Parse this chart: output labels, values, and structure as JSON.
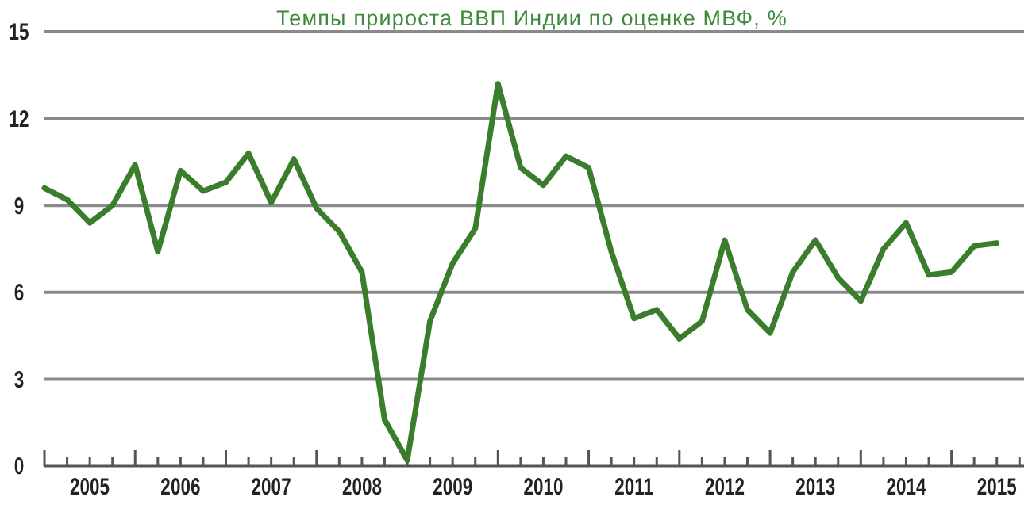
{
  "chart_data": {
    "type": "line",
    "title": "Темпы прироста ВВП Индии по оценке МВФ, %",
    "x": [
      2005,
      2005.25,
      2005.5,
      2005.75,
      2006,
      2006.25,
      2006.5,
      2006.75,
      2007,
      2007.25,
      2007.5,
      2007.75,
      2008,
      2008.25,
      2008.5,
      2008.75,
      2009,
      2009.25,
      2009.5,
      2009.75,
      2010,
      2010.25,
      2010.5,
      2010.75,
      2011,
      2011.25,
      2011.5,
      2011.75,
      2012,
      2012.25,
      2012.5,
      2012.75,
      2013,
      2013.25,
      2013.5,
      2013.75,
      2014,
      2014.25,
      2014.5,
      2014.75,
      2015,
      2015.25,
      2015.5
    ],
    "series": [
      {
        "color": "#3a7d2c",
        "values": [
          9.6,
          9.2,
          8.4,
          9.0,
          10.4,
          7.4,
          10.2,
          9.5,
          9.8,
          10.8,
          9.1,
          10.6,
          8.9,
          8.1,
          6.7,
          1.6,
          0.2,
          5.0,
          7.0,
          8.2,
          13.2,
          10.3,
          9.7,
          10.7,
          10.3,
          7.4,
          5.1,
          5.4,
          4.4,
          5.0,
          7.8,
          5.4,
          4.6,
          6.7,
          7.8,
          6.5,
          5.7,
          7.5,
          8.4,
          6.6,
          6.7,
          7.6,
          7.7
        ]
      }
    ],
    "xlim": [
      2005,
      2015.8
    ],
    "xticks": [
      {
        "value": 2005,
        "label": null
      },
      {
        "value": 2005.25,
        "label": null
      },
      {
        "value": 2005.5,
        "label": "2005"
      },
      {
        "value": 2005.75,
        "label": null
      },
      {
        "value": 2006,
        "label": null
      },
      {
        "value": 2006.25,
        "label": null
      },
      {
        "value": 2006.5,
        "label": "2006"
      },
      {
        "value": 2006.75,
        "label": null
      },
      {
        "value": 2007,
        "label": null
      },
      {
        "value": 2007.25,
        "label": null
      },
      {
        "value": 2007.5,
        "label": "2007"
      },
      {
        "value": 2007.75,
        "label": null
      },
      {
        "value": 2008,
        "label": null
      },
      {
        "value": 2008.25,
        "label": null
      },
      {
        "value": 2008.5,
        "label": "2008"
      },
      {
        "value": 2008.75,
        "label": null
      },
      {
        "value": 2009,
        "label": null
      },
      {
        "value": 2009.25,
        "label": null
      },
      {
        "value": 2009.5,
        "label": "2009"
      },
      {
        "value": 2009.75,
        "label": null
      },
      {
        "value": 2010,
        "label": null
      },
      {
        "value": 2010.25,
        "label": null
      },
      {
        "value": 2010.5,
        "label": "2010"
      },
      {
        "value": 2010.75,
        "label": null
      },
      {
        "value": 2011,
        "label": null
      },
      {
        "value": 2011.25,
        "label": null
      },
      {
        "value": 2011.5,
        "label": "2011"
      },
      {
        "value": 2011.75,
        "label": null
      },
      {
        "value": 2012,
        "label": null
      },
      {
        "value": 2012.25,
        "label": null
      },
      {
        "value": 2012.5,
        "label": "2012"
      },
      {
        "value": 2012.75,
        "label": null
      },
      {
        "value": 2013,
        "label": null
      },
      {
        "value": 2013.25,
        "label": null
      },
      {
        "value": 2013.5,
        "label": "2013"
      },
      {
        "value": 2013.75,
        "label": null
      },
      {
        "value": 2014,
        "label": null
      },
      {
        "value": 2014.25,
        "label": null
      },
      {
        "value": 2014.5,
        "label": "2014"
      },
      {
        "value": 2014.75,
        "label": null
      },
      {
        "value": 2015,
        "label": null
      },
      {
        "value": 2015.25,
        "label": null
      },
      {
        "value": 2015.5,
        "label": "2015"
      },
      {
        "value": 2015.75,
        "label": null
      }
    ],
    "ylim": [
      0,
      15
    ],
    "yticks": [
      0,
      3,
      6,
      9,
      12,
      15
    ],
    "grid": "y",
    "line_style": "solid"
  }
}
